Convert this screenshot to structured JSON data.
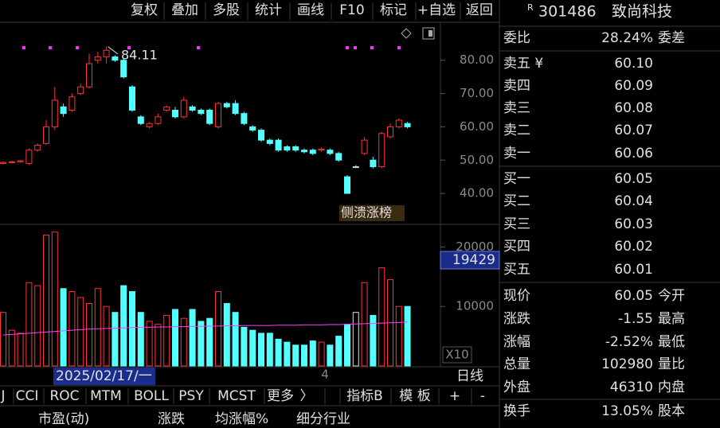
{
  "toolbar": [
    "复权",
    "叠加",
    "多股",
    "统计",
    "画线",
    "F10",
    "标记",
    "+自选",
    "返回"
  ],
  "quote": {
    "prefix": "R",
    "code": "301486",
    "name": "致尚科技",
    "weibi_label": "委比",
    "weibi": "28.24%",
    "weicha_label": "委差"
  },
  "order_book": {
    "asks": [
      {
        "label": "卖五 ¥",
        "price": "60.10"
      },
      {
        "label": "卖四",
        "price": "60.09"
      },
      {
        "label": "卖三",
        "price": "60.08"
      },
      {
        "label": "卖二",
        "price": "60.07"
      },
      {
        "label": "卖一",
        "price": "60.06"
      }
    ],
    "bids": [
      {
        "label": "买一",
        "price": "60.05"
      },
      {
        "label": "买二",
        "price": "60.04"
      },
      {
        "label": "买三",
        "price": "60.03"
      },
      {
        "label": "买四",
        "price": "60.02"
      },
      {
        "label": "买五",
        "price": "60.01"
      }
    ]
  },
  "stats": [
    {
      "label": "现价",
      "value": "60.05",
      "color": "#1ee81e",
      "label2": "今开"
    },
    {
      "label": "涨跌",
      "value": "-1.55",
      "color": "#1ee81e",
      "label2": "最高"
    },
    {
      "label": "涨幅",
      "value": "-2.52%",
      "color": "#1ee81e",
      "label2": "最低"
    },
    {
      "label": "总量",
      "value": "102980",
      "color": "#e6c619",
      "label2": "量比"
    },
    {
      "label": "外盘",
      "value": "46310",
      "color": "#ff4444",
      "label2": "内盘"
    },
    {
      "label": "换手",
      "value": "13.05%",
      "color": "#e0e0e0",
      "label2": "股本"
    }
  ],
  "tabs": [
    "J",
    "CCI",
    "ROC",
    "MTM",
    "BOLL",
    "PSY",
    "MCST",
    "更多",
    "〉",
    "指标B",
    "模 板",
    "+",
    "-"
  ],
  "footer": [
    "市盈(动)",
    "涨跌",
    "均涨幅%",
    "细分行业"
  ],
  "chart_labels": {
    "cursor_date": "2025/02/17/一",
    "period": "日线",
    "scale": "X10",
    "marker": "4",
    "cursor_volume": "19429",
    "tag": "侧溃涨榜"
  },
  "chart_data": {
    "type": "candlestick",
    "up_color": "#ff3232",
    "down_color": "#54ffff",
    "ma_color": "#ff40ff",
    "open": [
      49,
      49.3,
      49.5,
      49,
      53,
      55,
      60,
      66,
      65,
      70,
      72,
      80,
      81,
      81,
      80,
      72,
      63,
      60,
      61,
      65,
      65,
      63,
      66,
      65,
      65,
      60,
      67,
      67,
      64,
      60,
      59,
      56,
      56,
      54,
      54,
      53,
      53,
      53,
      53,
      52,
      45,
      48,
      52,
      50,
      48,
      57,
      60,
      61
    ],
    "close": [
      49.3,
      49.5,
      49.8,
      53,
      54.5,
      60,
      68,
      64,
      69,
      72,
      79,
      81,
      83,
      80,
      75,
      65,
      61,
      61,
      63,
      66,
      63,
      68,
      65,
      64,
      61,
      67,
      66,
      64,
      61,
      59,
      56,
      55,
      53,
      53,
      53,
      52.5,
      52,
      53.3,
      52,
      50,
      40,
      48,
      56,
      48,
      58,
      60,
      62,
      60
    ],
    "high": [
      49.6,
      49.8,
      50,
      53.5,
      55,
      62,
      72,
      67,
      70,
      73,
      82,
      82.5,
      84.11,
      81.5,
      80.5,
      72.5,
      63.5,
      61.5,
      64,
      66.5,
      66,
      69,
      66.5,
      65.5,
      65.5,
      67.5,
      67.5,
      68,
      64.5,
      60.5,
      59.5,
      56.5,
      56.5,
      54.5,
      54.5,
      53.5,
      53.5,
      53.8,
      53.5,
      52.5,
      45.5,
      48.5,
      57,
      51,
      58.5,
      61,
      62.5,
      61.5
    ],
    "low": [
      48.7,
      49,
      49.2,
      48.5,
      52.5,
      54.5,
      59,
      63,
      64.5,
      69.5,
      71.5,
      79,
      79,
      79.5,
      74.5,
      64.5,
      60.5,
      59.5,
      60.5,
      64.5,
      62.5,
      62.5,
      64.5,
      63.5,
      60.5,
      59.5,
      65.5,
      63.5,
      60.5,
      58.5,
      55.5,
      54.5,
      52.5,
      52.5,
      52.5,
      52,
      51.5,
      52.5,
      51.5,
      49.5,
      40,
      47.8,
      51.5,
      47.5,
      47.5,
      56.5,
      59.5,
      59.5
    ],
    "volume": [
      9000,
      6000,
      5500,
      14000,
      13500,
      22000,
      22500,
      13000,
      12500,
      11500,
      10500,
      13000,
      10000,
      9000,
      13500,
      12500,
      9000,
      7500,
      7000,
      8500,
      9500,
      8000,
      9500,
      7500,
      8000,
      12500,
      10500,
      9000,
      6500,
      6000,
      5500,
      5500,
      4500,
      4000,
      3500,
      3500,
      4200,
      4000,
      3500,
      5000,
      7000,
      9000,
      14000,
      8500,
      16500,
      14500,
      10000,
      10000
    ],
    "volume_ma": [
      5200,
      5300,
      5400,
      5500,
      5600,
      5700,
      5800,
      5900,
      6000,
      6100,
      6200,
      6250,
      6300,
      6350,
      6400,
      6450,
      6500,
      6500,
      6550,
      6550,
      6600,
      6600,
      6650,
      6650,
      6700,
      6700,
      6750,
      6750,
      6800,
      6800,
      6800,
      6800,
      6850,
      6850,
      6850,
      6900,
      6900,
      6900,
      6950,
      6950,
      7000,
      7050,
      7100,
      7150,
      7200,
      7250,
      7300,
      7400
    ],
    "ylim": [
      30.7,
      89.5
    ],
    "yticks": [
      {
        "value": 40,
        "label": "40.00"
      },
      {
        "value": 50,
        "label": "50.00"
      },
      {
        "value": 60,
        "label": "60.00"
      },
      {
        "value": 70,
        "label": "70.00"
      },
      {
        "value": 80,
        "label": "80.00"
      }
    ],
    "vlim": [
      0,
      23800
    ],
    "vticks": [
      10000,
      20000
    ]
  }
}
